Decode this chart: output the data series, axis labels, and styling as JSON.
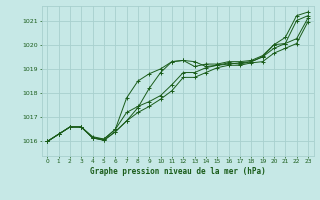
{
  "title": "Graphe pression niveau de la mer (hPa)",
  "background_color": "#c6e8e6",
  "grid_color": "#a8d0ce",
  "line_color": "#1a5c1a",
  "xlim": [
    -0.5,
    23.5
  ],
  "ylim": [
    1015.4,
    1021.6
  ],
  "yticks": [
    1016,
    1017,
    1018,
    1019,
    1020,
    1021
  ],
  "xticks": [
    0,
    1,
    2,
    3,
    4,
    5,
    6,
    7,
    8,
    9,
    10,
    11,
    12,
    13,
    14,
    15,
    16,
    17,
    18,
    19,
    20,
    21,
    22,
    23
  ],
  "series": [
    [
      1016.0,
      1016.3,
      1016.6,
      1016.6,
      1016.2,
      1016.1,
      1016.5,
      1017.8,
      1018.5,
      1018.8,
      1019.0,
      1019.3,
      1019.35,
      1019.1,
      1019.2,
      1019.2,
      1019.3,
      1019.3,
      1019.35,
      1019.55,
      1020.0,
      1020.3,
      1021.2,
      1021.35
    ],
    [
      1016.0,
      1016.3,
      1016.6,
      1016.6,
      1016.15,
      1016.1,
      1016.5,
      1017.2,
      1017.45,
      1017.65,
      1017.9,
      1018.35,
      1018.85,
      1018.85,
      1019.05,
      1019.15,
      1019.2,
      1019.25,
      1019.3,
      1019.5,
      1019.85,
      1020.05,
      1020.25,
      1021.1
    ],
    [
      1016.0,
      1016.3,
      1016.6,
      1016.6,
      1016.15,
      1016.05,
      1016.4,
      1016.85,
      1017.4,
      1018.2,
      1018.85,
      1019.3,
      1019.35,
      1019.3,
      1019.1,
      1019.15,
      1019.25,
      1019.2,
      1019.3,
      1019.5,
      1020.0,
      1020.05,
      1021.0,
      1021.2
    ],
    [
      1016.0,
      1016.3,
      1016.6,
      1016.6,
      1016.15,
      1016.05,
      1016.4,
      1016.85,
      1017.2,
      1017.45,
      1017.75,
      1018.1,
      1018.65,
      1018.65,
      1018.85,
      1019.05,
      1019.15,
      1019.15,
      1019.25,
      1019.3,
      1019.65,
      1019.85,
      1020.05,
      1020.95
    ]
  ]
}
